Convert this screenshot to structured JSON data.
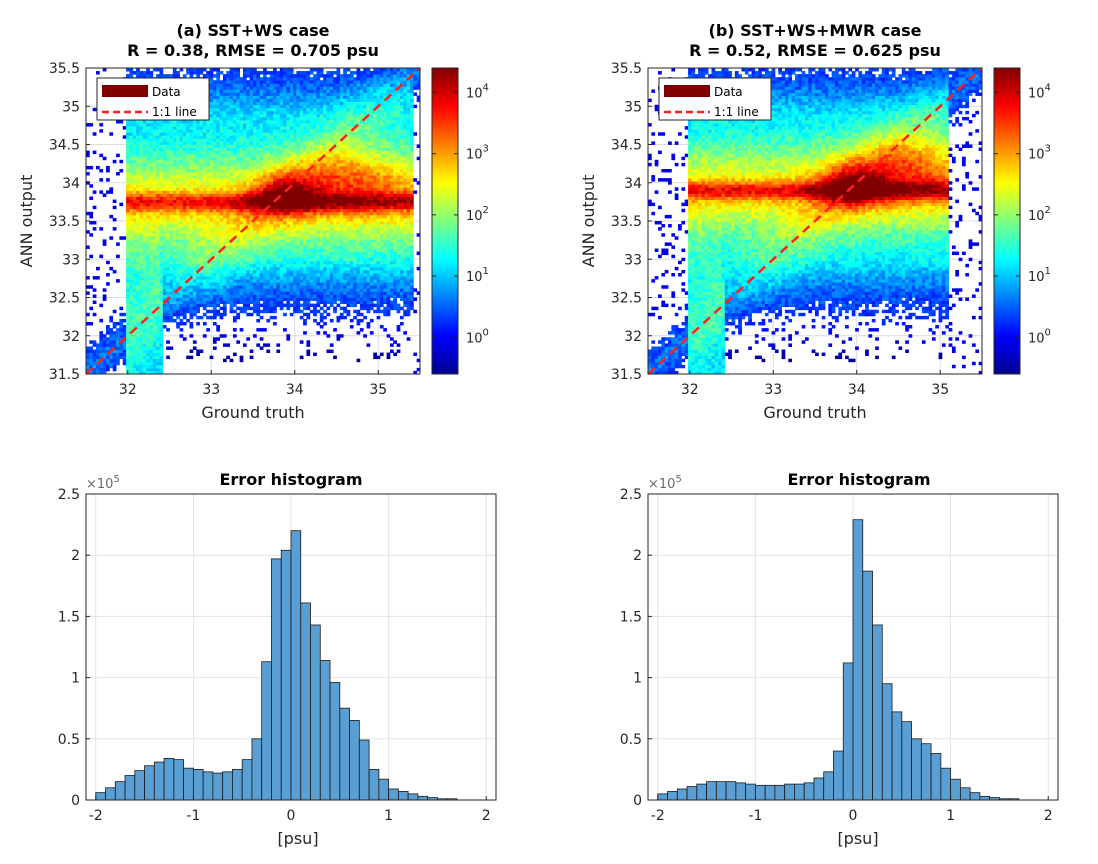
{
  "chart_data": [
    {
      "type": "heatmap",
      "title": "(a) SST+WS case",
      "subtitle": "R = 0.38, RMSE = 0.705 psu",
      "xlabel": "Ground truth",
      "ylabel": "ANN output",
      "xlim": [
        31.5,
        35.5
      ],
      "ylim": [
        31.5,
        35.5
      ],
      "xticks": [
        "32",
        "33",
        "34",
        "35"
      ],
      "yticks": [
        "31.5",
        "32",
        "32.5",
        "33",
        "33.5",
        "34",
        "34.5",
        "35",
        "35.5"
      ],
      "legend": [
        "Data",
        "1:1 line"
      ],
      "colorbar": {
        "scale": "log",
        "ticks": [
          "10^0",
          "10^1",
          "10^2",
          "10^3",
          "10^4"
        ],
        "range_log10": [
          -0.6,
          4.4
        ]
      },
      "density_features": {
        "band_level": 33.75,
        "peak": [
          33.9,
          33.85
        ],
        "upper_blob_center": [
          34.7,
          34.05
        ],
        "left_edge": 32.0,
        "right_edge": 35.4
      }
    },
    {
      "type": "heatmap",
      "title": "(b) SST+WS+MWR case",
      "subtitle": "R = 0.52, RMSE = 0.625 psu",
      "xlabel": "Ground truth",
      "ylabel": "ANN output",
      "xlim": [
        31.5,
        35.5
      ],
      "ylim": [
        31.5,
        35.5
      ],
      "xticks": [
        "32",
        "33",
        "34",
        "35"
      ],
      "yticks": [
        "31.5",
        "32",
        "32.5",
        "33",
        "33.5",
        "34",
        "34.5",
        "35",
        "35.5"
      ],
      "legend": [
        "Data",
        "1:1 line"
      ],
      "colorbar": {
        "scale": "log",
        "ticks": [
          "10^0",
          "10^1",
          "10^2",
          "10^3",
          "10^4"
        ],
        "range_log10": [
          -0.6,
          4.4
        ]
      },
      "density_features": {
        "band_level": 33.9,
        "peak": [
          33.95,
          33.95
        ],
        "upper_blob_center": [
          34.6,
          34.2
        ],
        "left_edge": 32.0,
        "right_edge": 35.1
      }
    },
    {
      "type": "bar",
      "title": "Error histogram",
      "xlabel": "[psu]",
      "ylabel": "",
      "multiplier": "×10^5",
      "xlim": [
        -2.1,
        2.1
      ],
      "ylim": [
        0,
        2.5
      ],
      "xticks": [
        "-2",
        "-1",
        "0",
        "1",
        "2"
      ],
      "yticks": [
        "0",
        "0.5",
        "1",
        "1.5",
        "2",
        "2.5"
      ],
      "bin_start": -2.0,
      "bin_width": 0.1,
      "values": [
        0.06,
        0.1,
        0.15,
        0.2,
        0.24,
        0.28,
        0.31,
        0.34,
        0.33,
        0.26,
        0.25,
        0.23,
        0.22,
        0.23,
        0.25,
        0.33,
        0.5,
        1.13,
        1.97,
        2.04,
        2.2,
        1.61,
        1.43,
        1.14,
        0.96,
        0.75,
        0.65,
        0.49,
        0.25,
        0.17,
        0.09,
        0.07,
        0.05,
        0.03,
        0.02,
        0.01,
        0.01,
        0.0,
        0.0,
        0.0
      ]
    },
    {
      "type": "bar",
      "title": "Error histogram",
      "xlabel": "[psu]",
      "ylabel": "",
      "multiplier": "×10^5",
      "xlim": [
        -2.1,
        2.1
      ],
      "ylim": [
        0,
        2.5
      ],
      "xticks": [
        "-2",
        "-1",
        "0",
        "1",
        "2"
      ],
      "yticks": [
        "0",
        "0.5",
        "1",
        "1.5",
        "2",
        "2.5"
      ],
      "bin_start": -2.0,
      "bin_width": 0.1,
      "values": [
        0.05,
        0.07,
        0.09,
        0.11,
        0.13,
        0.15,
        0.15,
        0.15,
        0.14,
        0.13,
        0.12,
        0.12,
        0.12,
        0.13,
        0.13,
        0.14,
        0.18,
        0.23,
        0.4,
        1.12,
        2.29,
        1.87,
        1.43,
        0.95,
        0.72,
        0.64,
        0.5,
        0.46,
        0.38,
        0.26,
        0.17,
        0.1,
        0.06,
        0.03,
        0.02,
        0.01,
        0.01,
        0.0,
        0.0,
        0.0
      ]
    }
  ]
}
